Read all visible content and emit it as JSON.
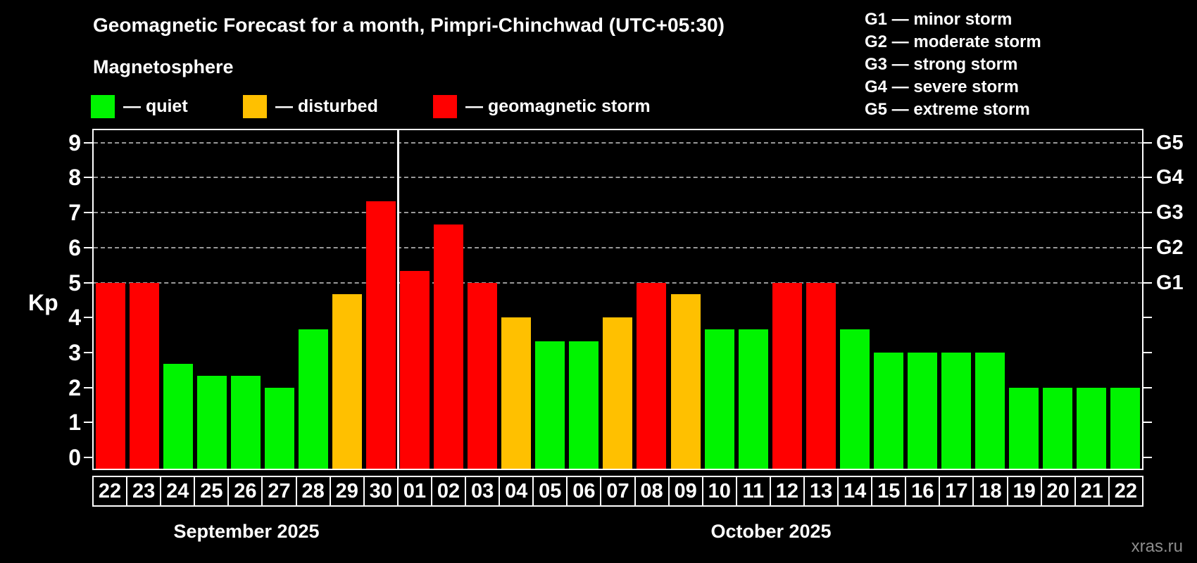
{
  "title": "Geomagnetic Forecast for a month, Pimpri-Chinchwad (UTC+05:30)",
  "subtitle": "Magnetosphere",
  "legend": {
    "items": [
      {
        "name": "quiet",
        "label": "— quiet",
        "color": "#00f400"
      },
      {
        "name": "disturbed",
        "label": "— disturbed",
        "color": "#ffc000"
      },
      {
        "name": "storm",
        "label": "— geomagnetic storm",
        "color": "#ff0000"
      }
    ]
  },
  "storm_scale_legend": [
    "G1 — minor storm",
    "G2 — moderate storm",
    "G3 — strong storm",
    "G4 — severe storm",
    "G5 — extreme storm"
  ],
  "watermark": "xras.ru",
  "chart_data": {
    "type": "bar",
    "ylabel": "Kp",
    "ylim": [
      0,
      9.4
    ],
    "yticks": [
      0,
      1,
      2,
      3,
      4,
      5,
      6,
      7,
      8,
      9
    ],
    "gridlines_at": [
      5,
      6,
      7,
      8,
      9
    ],
    "grid": "dashed",
    "right_axis_labels": [
      {
        "kp": 5,
        "label": "G1"
      },
      {
        "kp": 6,
        "label": "G2"
      },
      {
        "kp": 7,
        "label": "G3"
      },
      {
        "kp": 8,
        "label": "G4"
      },
      {
        "kp": 9,
        "label": "G5"
      }
    ],
    "months": [
      {
        "label": "September 2025",
        "days": 9
      },
      {
        "label": "October 2025",
        "days": 22
      }
    ],
    "categories": [
      "22",
      "23",
      "24",
      "25",
      "26",
      "27",
      "28",
      "29",
      "30",
      "01",
      "02",
      "03",
      "04",
      "05",
      "06",
      "07",
      "08",
      "09",
      "10",
      "11",
      "12",
      "13",
      "14",
      "15",
      "16",
      "17",
      "18",
      "19",
      "20",
      "21",
      "22"
    ],
    "values": [
      5,
      5,
      2.67,
      2.33,
      2.33,
      2,
      3.67,
      4.67,
      7.33,
      5.33,
      6.67,
      5,
      4,
      3.33,
      3.33,
      4,
      5,
      4.67,
      3.67,
      3.67,
      5,
      5,
      3.67,
      3,
      3,
      3,
      3,
      2,
      2,
      2,
      2
    ],
    "status": [
      "storm",
      "storm",
      "quiet",
      "quiet",
      "quiet",
      "quiet",
      "quiet",
      "disturbed",
      "storm",
      "storm",
      "storm",
      "storm",
      "disturbed",
      "quiet",
      "quiet",
      "disturbed",
      "storm",
      "disturbed",
      "quiet",
      "quiet",
      "storm",
      "storm",
      "quiet",
      "quiet",
      "quiet",
      "quiet",
      "quiet",
      "quiet",
      "quiet",
      "quiet",
      "quiet"
    ],
    "colors": {
      "quiet": "#00f400",
      "disturbed": "#ffc000",
      "storm": "#ff0000"
    }
  }
}
